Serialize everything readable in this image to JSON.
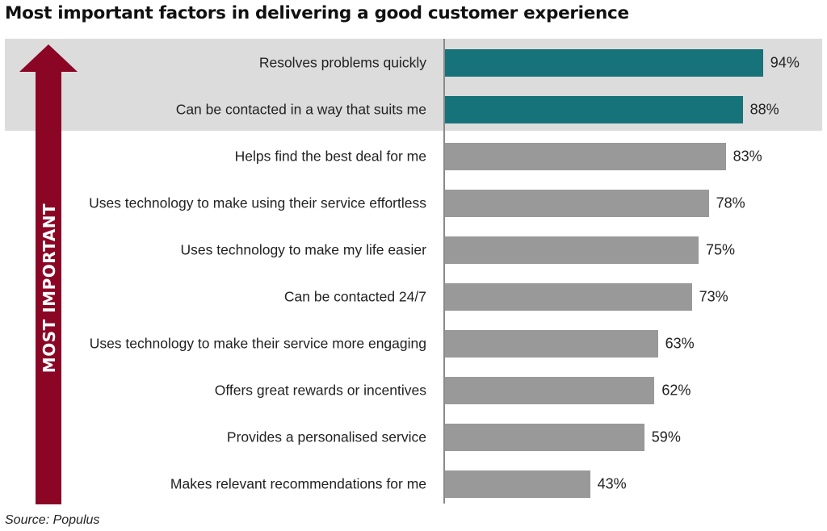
{
  "chart_data": {
    "type": "bar",
    "orientation": "horizontal",
    "title": "Most important factors in delivering a good customer experience",
    "categories": [
      "Resolves problems quickly",
      "Can be contacted in a way that suits me",
      "Helps find the best deal for me",
      "Uses technology to make using their service effortless",
      "Uses technology to make my life easier",
      "Can be contacted 24/7",
      "Uses technology to make their service more engaging",
      "Offers great rewards or incentives",
      "Provides a personalised service",
      "Makes relevant recommendations for me"
    ],
    "values": [
      94,
      88,
      83,
      78,
      75,
      73,
      63,
      62,
      59,
      43
    ],
    "value_labels": [
      "94%",
      "88%",
      "83%",
      "78%",
      "75%",
      "73%",
      "63%",
      "62%",
      "59%",
      "43%"
    ],
    "xlim": [
      0,
      100
    ],
    "highlighted_count": 2,
    "grid": false,
    "colors": {
      "highlight_bar": "#16737a",
      "bar": "#999999",
      "highlight_band": "#dcdcdc",
      "arrow": "#8b0524"
    },
    "arrow_label": "MOST IMPORTANT",
    "source": "Source: Populus"
  }
}
